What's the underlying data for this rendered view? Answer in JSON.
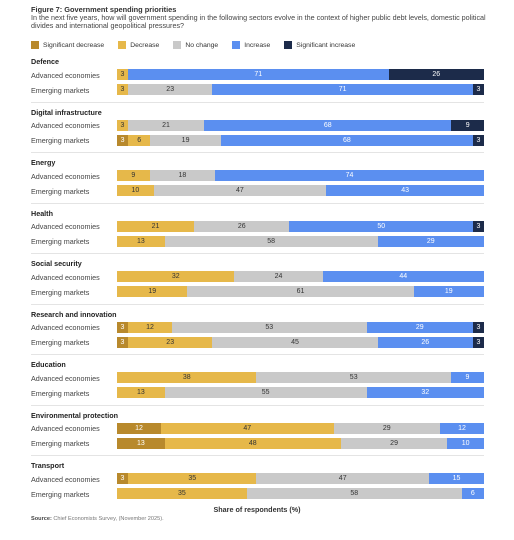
{
  "figure": {
    "title": "Figure 7: Government spending priorities",
    "subtitle": "In the next five years, how will government spending in the following sectors evolve in the context of higher public debt levels, domestic political divides and international geopolitical pressures?",
    "source_label": "Source:",
    "source_text": "Chief Economists Survey, (November 2025).",
    "xlabel": "Share of respondents (%)"
  },
  "colors": {
    "significant_decrease": "#b8892c",
    "decrease": "#e6b84a",
    "no_change": "#c9c9c9",
    "increase": "#5b8ff0",
    "significant_increase": "#1c2b4a"
  },
  "chart_data": {
    "type": "bar",
    "orientation": "horizontal",
    "stacked": true,
    "xlim": [
      0,
      100
    ],
    "xlabel": "Share of respondents (%)",
    "legend_position": "top-left",
    "grid": false,
    "categories_order": [
      "Significant decrease",
      "Decrease",
      "No change",
      "Increase",
      "Significant increase"
    ],
    "legend": [
      {
        "name": "Significant decrease",
        "key": "significant_decrease"
      },
      {
        "name": "Decrease",
        "key": "decrease"
      },
      {
        "name": "No change",
        "key": "no_change"
      },
      {
        "name": "Increase",
        "key": "increase"
      },
      {
        "name": "Significant increase",
        "key": "significant_increase"
      }
    ],
    "sectors": [
      {
        "name": "Defence",
        "rows": [
          {
            "label": "Advanced economies",
            "values": [
              0,
              3,
              0,
              71,
              26
            ]
          },
          {
            "label": "Emerging markets",
            "values": [
              0,
              3,
              23,
              71,
              3
            ]
          }
        ]
      },
      {
        "name": "Digital infrastructure",
        "rows": [
          {
            "label": "Advanced economies",
            "values": [
              0,
              3,
              21,
              68,
              9
            ]
          },
          {
            "label": "Emerging markets",
            "values": [
              3,
              6,
              19,
              68,
              3
            ]
          }
        ]
      },
      {
        "name": "Energy",
        "rows": [
          {
            "label": "Advanced economies",
            "values": [
              0,
              9,
              18,
              74,
              0
            ]
          },
          {
            "label": "Emerging markets",
            "values": [
              0,
              10,
              47,
              43,
              0
            ]
          }
        ]
      },
      {
        "name": "Health",
        "rows": [
          {
            "label": "Advanced economies",
            "values": [
              0,
              21,
              26,
              50,
              3
            ]
          },
          {
            "label": "Emerging markets",
            "values": [
              0,
              13,
              58,
              29,
              0
            ]
          }
        ]
      },
      {
        "name": "Social security",
        "rows": [
          {
            "label": "Advanced economies",
            "values": [
              0,
              32,
              24,
              44,
              0
            ]
          },
          {
            "label": "Emerging markets",
            "values": [
              0,
              19,
              61,
              19,
              0
            ]
          }
        ]
      },
      {
        "name": "Research and innovation",
        "rows": [
          {
            "label": "Advanced economies",
            "values": [
              3,
              12,
              53,
              29,
              3
            ]
          },
          {
            "label": "Emerging markets",
            "values": [
              3,
              23,
              45,
              26,
              3
            ]
          }
        ]
      },
      {
        "name": "Education",
        "rows": [
          {
            "label": "Advanced economies",
            "values": [
              0,
              38,
              53,
              9,
              0
            ]
          },
          {
            "label": "Emerging markets",
            "values": [
              0,
              13,
              55,
              32,
              0
            ]
          }
        ]
      },
      {
        "name": "Environmental protection",
        "rows": [
          {
            "label": "Advanced economies",
            "values": [
              12,
              47,
              29,
              12,
              0
            ]
          },
          {
            "label": "Emerging markets",
            "values": [
              13,
              48,
              29,
              10,
              0
            ]
          }
        ]
      },
      {
        "name": "Transport",
        "rows": [
          {
            "label": "Advanced economies",
            "values": [
              3,
              35,
              47,
              15,
              0
            ]
          },
          {
            "label": "Emerging markets",
            "values": [
              0,
              35,
              58,
              6,
              0
            ]
          }
        ]
      }
    ]
  }
}
